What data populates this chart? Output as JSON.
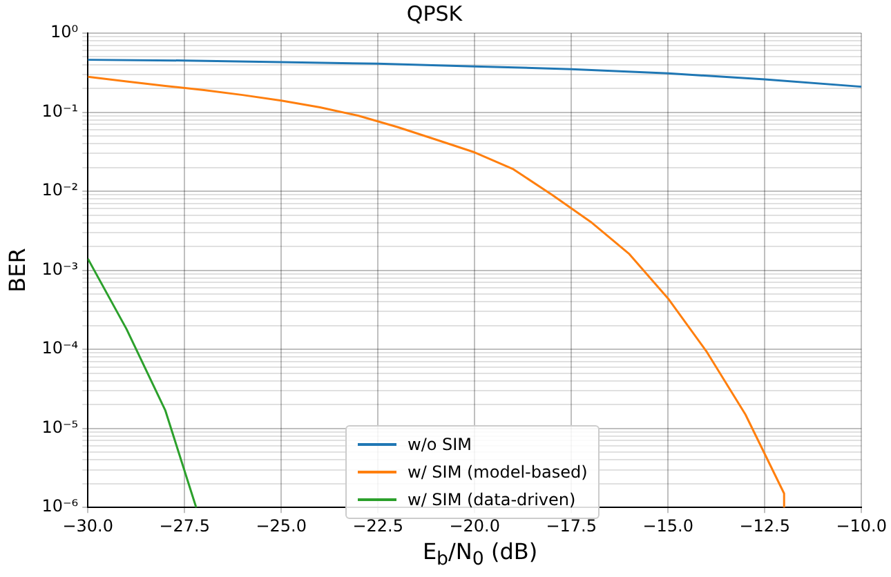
{
  "chart_data": {
    "type": "line",
    "title": "QPSK",
    "xlabel": "E$_{b}$/N$_{0}$ (dB)",
    "ylabel": "BER",
    "log": "y",
    "grid": true,
    "legend": "bottom",
    "marker": "none",
    "line_style": "solid",
    "xlim": [
      -30,
      -10
    ],
    "xticks": [
      {
        "value": -30,
        "label": "−30.0"
      },
      {
        "value": -27.5,
        "label": "−27.5"
      },
      {
        "value": -25,
        "label": "−25.0"
      },
      {
        "value": -22.5,
        "label": "−22.5"
      },
      {
        "value": -20,
        "label": "−20.0"
      },
      {
        "value": -17.5,
        "label": "−17.5"
      },
      {
        "value": -15,
        "label": "−15.0"
      },
      {
        "value": -12.5,
        "label": "−12.5"
      },
      {
        "value": -10,
        "label": "−10.0"
      }
    ],
    "ylim": [
      1e-06,
      1
    ],
    "yticks": [
      {
        "value": 1e-06,
        "label": "10⁻⁶"
      },
      {
        "value": 2e-06,
        "label": null
      },
      {
        "value": 3e-06,
        "label": null
      },
      {
        "value": 4e-06,
        "label": null
      },
      {
        "value": 5e-06,
        "label": null
      },
      {
        "value": 6e-06,
        "label": null
      },
      {
        "value": 7e-06,
        "label": null
      },
      {
        "value": 8e-06,
        "label": null
      },
      {
        "value": 9e-06,
        "label": null
      },
      {
        "value": 1e-05,
        "label": "10⁻⁵"
      },
      {
        "value": 2e-05,
        "label": null
      },
      {
        "value": 3e-05,
        "label": null
      },
      {
        "value": 4e-05,
        "label": null
      },
      {
        "value": 5e-05,
        "label": null
      },
      {
        "value": 6e-05,
        "label": null
      },
      {
        "value": 7e-05,
        "label": null
      },
      {
        "value": 8e-05,
        "label": null
      },
      {
        "value": 9e-05,
        "label": null
      },
      {
        "value": 0.0001,
        "label": "10⁻⁴"
      },
      {
        "value": 0.0002,
        "label": null
      },
      {
        "value": 0.0003,
        "label": null
      },
      {
        "value": 0.0004,
        "label": null
      },
      {
        "value": 0.0005,
        "label": null
      },
      {
        "value": 0.0006,
        "label": null
      },
      {
        "value": 0.0007,
        "label": null
      },
      {
        "value": 0.0008,
        "label": null
      },
      {
        "value": 0.0009,
        "label": null
      },
      {
        "value": 0.001,
        "label": "10⁻³"
      },
      {
        "value": 0.002,
        "label": null
      },
      {
        "value": 0.003,
        "label": null
      },
      {
        "value": 0.004,
        "label": null
      },
      {
        "value": 0.005,
        "label": null
      },
      {
        "value": 0.006,
        "label": null
      },
      {
        "value": 0.007,
        "label": null
      },
      {
        "value": 0.008,
        "label": null
      },
      {
        "value": 0.009,
        "label": null
      },
      {
        "value": 0.01,
        "label": "10⁻²"
      },
      {
        "value": 0.02,
        "label": null
      },
      {
        "value": 0.03,
        "label": null
      },
      {
        "value": 0.04,
        "label": null
      },
      {
        "value": 0.05,
        "label": null
      },
      {
        "value": 0.06,
        "label": null
      },
      {
        "value": 0.07,
        "label": null
      },
      {
        "value": 0.08,
        "label": null
      },
      {
        "value": 0.09,
        "label": null
      },
      {
        "value": 0.1,
        "label": "10⁻¹"
      },
      {
        "value": 0.2,
        "label": null
      },
      {
        "value": 0.3,
        "label": null
      },
      {
        "value": 0.4,
        "label": null
      },
      {
        "value": 0.5,
        "label": null
      },
      {
        "value": 0.6,
        "label": null
      },
      {
        "value": 0.7,
        "label": null
      },
      {
        "value": 0.8,
        "label": null
      },
      {
        "value": 0.9,
        "label": null
      },
      {
        "value": 1,
        "label": "10⁰"
      }
    ],
    "series": [
      {
        "name": "w/o SIM",
        "color": "#1f77b4",
        "x": [
          -30,
          -27.5,
          -25,
          -22.5,
          -20,
          -17.5,
          -15,
          -12.5,
          -10
        ],
        "values": [
          0.46,
          0.45,
          0.43,
          0.41,
          0.38,
          0.35,
          0.31,
          0.26,
          0.21
        ]
      },
      {
        "name": "w/ SIM (model-based)",
        "color": "#ff7f0e",
        "x": [
          -30,
          -29,
          -28,
          -27,
          -26,
          -25,
          -24,
          -23,
          -22,
          -21,
          -20,
          -19,
          -18,
          -17,
          -16,
          -15,
          -14,
          -13,
          -12,
          -12
        ],
        "values": [
          0.28,
          0.245,
          0.215,
          0.19,
          0.165,
          0.14,
          0.115,
          0.09,
          0.065,
          0.045,
          0.031,
          0.019,
          0.009,
          0.0041,
          0.0016,
          0.00044,
          9.3e-05,
          1.5e-05,
          1.5e-06,
          1e-06
        ]
      },
      {
        "name": "w/ SIM (data-driven)",
        "color": "#2ca02c",
        "x": [
          -30,
          -29,
          -28,
          -27.2
        ],
        "values": [
          0.0014,
          0.00018,
          1.7e-05,
          1e-06
        ]
      }
    ]
  }
}
